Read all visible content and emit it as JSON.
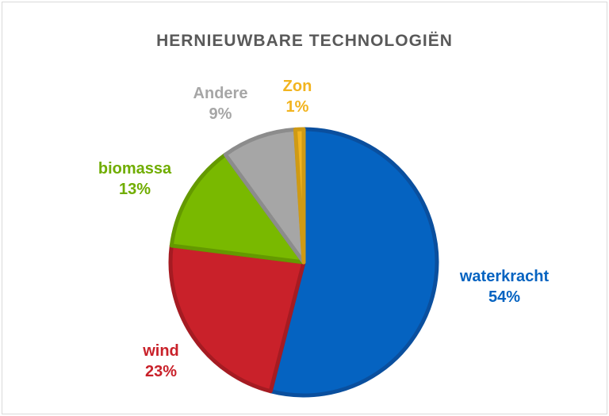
{
  "chart_data": {
    "type": "pie",
    "title": "HERNIEUWBARE TECHNOLOGIËN",
    "slices": [
      {
        "label": "waterkracht",
        "value": 54,
        "percent_label": "54%",
        "color": "#0563c1",
        "stroke": "#0a4f9e"
      },
      {
        "label": "wind",
        "value": 23,
        "percent_label": "23%",
        "color": "#c9212a",
        "stroke": "#a51b22"
      },
      {
        "label": "biomassa",
        "value": 13,
        "percent_label": "13%",
        "color": "#79b900",
        "stroke": "#649900"
      },
      {
        "label": "Andere",
        "value": 9,
        "percent_label": "9%",
        "color": "#a6a6a6",
        "stroke": "#8c8c8c"
      },
      {
        "label": "Zon",
        "value": 1,
        "percent_label": "1%",
        "color": "#f2b41f",
        "stroke": "#cf9a14"
      }
    ],
    "label_colors": {
      "waterkracht": "#0563c1",
      "wind": "#c9212a",
      "biomassa": "#70ad00",
      "Andere": "#a6a6a6",
      "Zon": "#f2b41f"
    },
    "legend": "none"
  }
}
